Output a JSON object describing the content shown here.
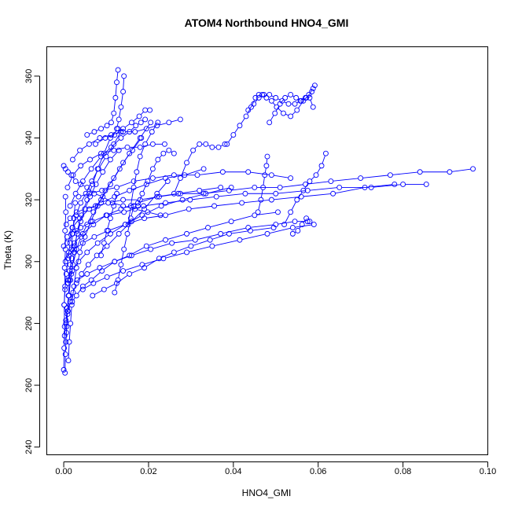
{
  "chart_data": {
    "type": "scatter",
    "title": "ATOM4 Northbound HNO4_GMI",
    "xlabel": "HNO4_GMI",
    "ylabel": "Theta (K)",
    "xlim": [
      -0.004,
      0.1
    ],
    "ylim": [
      237.5,
      369.5
    ],
    "xticks": [
      0.0,
      0.02,
      0.04,
      0.06,
      0.08,
      0.1
    ],
    "xtick_labels": [
      "0.00",
      "0.02",
      "0.04",
      "0.06",
      "0.08",
      "0.10"
    ],
    "yticks": [
      240,
      260,
      280,
      300,
      320,
      340,
      360
    ],
    "ytick_labels": [
      "240",
      "260",
      "280",
      "300",
      "320",
      "340",
      "360"
    ],
    "grid": false,
    "color": "#0000ff",
    "marker": "open-circle",
    "connected": true,
    "series": [
      {
        "x": [
          0.0003,
          0.0004,
          0.0006,
          0.0009,
          0.0012,
          0.0018,
          0.0025,
          0.0032,
          0.0042,
          0.0055,
          0.0068,
          0.008,
          0.0095,
          0.011,
          0.0128
        ],
        "y": [
          264,
          270,
          277,
          283,
          289,
          296,
          303,
          310,
          315,
          320,
          325,
          330,
          335,
          340,
          343
        ]
      },
      {
        "x": [
          0.0002,
          0.0005,
          0.0008,
          0.0012,
          0.0016,
          0.0022,
          0.003,
          0.0041,
          0.0055,
          0.007,
          0.0088,
          0.011,
          0.0132,
          0.0155,
          0.018,
          0.0205
        ],
        "y": [
          276,
          280,
          285,
          289,
          294,
          299,
          304,
          308,
          312,
          316,
          320,
          325,
          330,
          335,
          340,
          345
        ]
      },
      {
        "x": [
          0.0001,
          0.0003,
          0.0006,
          0.001,
          0.0015,
          0.0021,
          0.0029,
          0.004,
          0.0052,
          0.0066,
          0.0082,
          0.01,
          0.0118,
          0.0135
        ],
        "y": [
          286,
          291,
          296,
          301,
          306,
          311,
          315,
          319,
          322,
          326,
          330,
          334,
          338,
          342
        ]
      },
      {
        "x": [
          0.0005,
          0.001,
          0.0015,
          0.0022,
          0.003,
          0.0042,
          0.0058,
          0.0078,
          0.0102,
          0.013,
          0.016,
          0.019,
          0.022,
          0.0245
        ],
        "y": [
          281,
          284,
          287,
          290,
          293,
          296,
          299,
          302,
          305,
          309,
          313,
          317,
          322,
          326
        ]
      },
      {
        "x": [
          0.0011,
          0.0013,
          0.0016,
          0.0019,
          0.0024,
          0.003,
          0.0038,
          0.005,
          0.0064,
          0.008,
          0.0098,
          0.0118,
          0.014,
          0.0162,
          0.0183
        ],
        "y": [
          268,
          274,
          280,
          286,
          292,
          298,
          303,
          308,
          313,
          318,
          323,
          327,
          332,
          336,
          340
        ]
      },
      {
        "x": [
          0.002,
          0.003,
          0.0045,
          0.0065,
          0.009,
          0.012,
          0.0155,
          0.0195,
          0.024,
          0.029,
          0.034,
          0.0395,
          0.045,
          0.0505
        ],
        "y": [
          287,
          289,
          292,
          294,
          297,
          300,
          302,
          305,
          307,
          309,
          311,
          313,
          315,
          316
        ]
      },
      {
        "x": [
          0.001,
          0.002,
          0.0035,
          0.0055,
          0.008,
          0.011,
          0.0145,
          0.0185,
          0.023,
          0.028,
          0.0335,
          0.0395
        ],
        "y": [
          294,
          297,
          300,
          303,
          306,
          309,
          312,
          315,
          318,
          320,
          322,
          324
        ]
      },
      {
        "x": [
          0.0004,
          0.0012,
          0.0025,
          0.0045,
          0.007,
          0.01,
          0.0135,
          0.0175,
          0.022,
          0.027,
          0.032,
          0.037
        ],
        "y": [
          300,
          303,
          306,
          309,
          312,
          315,
          317,
          319,
          321,
          322,
          323,
          324
        ]
      },
      {
        "x": [
          0.0,
          0.0008,
          0.002,
          0.0038,
          0.006,
          0.0088,
          0.012,
          0.0155,
          0.0195,
          0.024,
          0.0285,
          0.033
        ],
        "y": [
          305,
          308,
          311,
          314,
          317,
          319,
          321,
          323,
          325,
          327,
          328,
          330
        ]
      },
      {
        "x": [
          0.0006,
          0.0015,
          0.003,
          0.005,
          0.0075,
          0.0105,
          0.014,
          0.018,
          0.0225,
          0.0275,
          0.033,
          0.039,
          0.045,
          0.051,
          0.057,
          0.063,
          0.07,
          0.077,
          0.084,
          0.091,
          0.0965
        ],
        "y": [
          312,
          314,
          316,
          317,
          318,
          319,
          320,
          320,
          321,
          322,
          322,
          323,
          324,
          324,
          325,
          326,
          327,
          328,
          329,
          329,
          330
        ]
      },
      {
        "x": [
          0.0008,
          0.002,
          0.004,
          0.0068,
          0.0102,
          0.0142,
          0.0188,
          0.024,
          0.0298,
          0.036,
          0.0428,
          0.05,
          0.0575,
          0.065,
          0.0725,
          0.08,
          0.0855
        ],
        "y": [
          306,
          309,
          311,
          313,
          315,
          316,
          318,
          319,
          320,
          321,
          322,
          322,
          323,
          324,
          324,
          325,
          325
        ]
      },
      {
        "x": [
          0.0012,
          0.0025,
          0.0045,
          0.0072,
          0.0105,
          0.0145,
          0.019,
          0.024,
          0.0295,
          0.0355,
          0.042,
          0.049,
          0.056,
          0.0635,
          0.071,
          0.078
        ],
        "y": [
          302,
          304,
          306,
          308,
          310,
          312,
          314,
          315,
          317,
          318,
          319,
          320,
          321,
          322,
          324,
          325
        ]
      },
      {
        "x": [
          0.0032,
          0.0055,
          0.0085,
          0.012,
          0.016,
          0.0205,
          0.0255,
          0.031,
          0.037,
          0.0435,
          0.05,
          0.0545,
          0.0575
        ],
        "y": [
          294,
          296,
          298,
          300,
          302,
          304,
          306,
          307,
          309,
          311,
          312,
          313,
          313
        ]
      },
      {
        "x": [
          0.0045,
          0.007,
          0.0102,
          0.014,
          0.0185,
          0.0235,
          0.029,
          0.035,
          0.0415,
          0.048,
          0.054,
          0.059
        ],
        "y": [
          291,
          293,
          295,
          297,
          299,
          301,
          303,
          305,
          307,
          309,
          311,
          312
        ]
      },
      {
        "x": [
          0.0068,
          0.0095,
          0.0125,
          0.0155,
          0.019,
          0.0225,
          0.026,
          0.03,
          0.0345,
          0.039,
          0.044,
          0.0495
        ],
        "y": [
          289,
          291,
          293,
          296,
          298,
          301,
          303,
          305,
          307,
          309,
          310,
          311
        ]
      },
      {
        "x": [
          0.0015,
          0.0028,
          0.0045,
          0.0065,
          0.0088,
          0.0112,
          0.0135,
          0.0155,
          0.017,
          0.0182,
          0.0192
        ],
        "y": [
          318,
          322,
          326,
          330,
          334,
          337,
          340,
          342,
          344,
          345,
          346
        ]
      },
      {
        "x": [
          0.0009,
          0.0022,
          0.004,
          0.0062,
          0.0088,
          0.0118,
          0.015,
          0.018,
          0.021,
          0.0238
        ],
        "y": [
          324,
          328,
          331,
          333,
          335,
          336,
          337,
          337,
          338,
          338
        ]
      },
      {
        "x": [
          0.0021,
          0.0038,
          0.006,
          0.0085,
          0.0112,
          0.014,
          0.0168,
          0.0195,
          0.022,
          0.0248,
          0.0275
        ],
        "y": [
          333,
          336,
          338,
          340,
          341,
          342,
          342,
          343,
          344,
          345,
          346
        ]
      },
      {
        "x": [
          0.0055,
          0.0072,
          0.0088,
          0.0102,
          0.0112,
          0.0118,
          0.0122,
          0.0125,
          0.0128
        ],
        "y": [
          341,
          342,
          343,
          344,
          345,
          348,
          353,
          358,
          362
        ]
      },
      {
        "x": [
          0.0125,
          0.013,
          0.0135,
          0.014,
          0.0142
        ],
        "y": [
          343,
          346,
          350,
          355,
          360
        ]
      },
      {
        "x": [
          0.0075,
          0.0098,
          0.012,
          0.014,
          0.016,
          0.0178,
          0.0192,
          0.0203
        ],
        "y": [
          338,
          340,
          341,
          343,
          345,
          347,
          349,
          349
        ]
      },
      {
        "x": [
          0.0152,
          0.0158,
          0.0165,
          0.0172,
          0.018,
          0.0192,
          0.0208,
          0.0222
        ],
        "y": [
          312,
          318,
          324,
          329,
          334,
          338,
          342,
          345
        ]
      },
      {
        "x": [
          0.0175,
          0.0185,
          0.0198,
          0.021,
          0.0222,
          0.0235,
          0.0248,
          0.026
        ],
        "y": [
          318,
          322,
          326,
          330,
          333,
          335,
          336,
          335
        ]
      },
      {
        "x": [
          0.026,
          0.0275,
          0.029,
          0.0305,
          0.032,
          0.0335,
          0.035,
          0.0365,
          0.038
        ],
        "y": [
          322,
          327,
          332,
          336,
          338,
          338,
          337,
          337,
          338
        ]
      },
      {
        "x": [
          0.0035,
          0.006,
          0.009,
          0.0125,
          0.0165,
          0.021,
          0.026,
          0.0315,
          0.0375,
          0.0435,
          0.049,
          0.0535
        ],
        "y": [
          321,
          322,
          323,
          324,
          326,
          327,
          328,
          328,
          329,
          329,
          328,
          327
        ]
      },
      {
        "x": [
          0.0385,
          0.04,
          0.0415,
          0.043,
          0.0442,
          0.0452,
          0.046,
          0.0468,
          0.0478,
          0.049,
          0.0502,
          0.0518,
          0.0535,
          0.055,
          0.0565,
          0.0578,
          0.0588,
          0.0592
        ],
        "y": [
          338,
          341,
          344,
          347,
          350,
          353,
          354,
          354,
          353,
          352,
          350,
          348,
          347,
          349,
          352,
          354,
          356,
          357
        ]
      },
      {
        "x": [
          0.0435,
          0.0448,
          0.046,
          0.0472,
          0.0485,
          0.05,
          0.0515,
          0.053,
          0.0545,
          0.0558,
          0.057,
          0.058,
          0.0588
        ],
        "y": [
          349,
          351,
          353,
          354,
          354,
          353,
          352,
          351,
          351,
          352,
          353,
          353,
          350
        ]
      },
      {
        "x": [
          0.0485,
          0.0498,
          0.051,
          0.0522,
          0.0535,
          0.0548,
          0.056,
          0.0572,
          0.0585
        ],
        "y": [
          345,
          348,
          351,
          353,
          354,
          353,
          352,
          353,
          355
        ]
      },
      {
        "x": [
          0.0458,
          0.0465,
          0.047,
          0.0474,
          0.0478,
          0.048
        ],
        "y": [
          316,
          320,
          324,
          328,
          331,
          334
        ]
      },
      {
        "x": [
          0.052,
          0.0535,
          0.055,
          0.0565,
          0.058,
          0.0595,
          0.0608,
          0.0618
        ],
        "y": [
          312,
          316,
          320,
          323,
          326,
          328,
          331,
          335
        ]
      },
      {
        "x": [
          0.054,
          0.0552,
          0.0562,
          0.0572,
          0.058
        ],
        "y": [
          309,
          310,
          312,
          314,
          313
        ]
      },
      {
        "x": [
          0.0,
          0.0001,
          0.0002,
          0.0001,
          0.0003,
          0.0002,
          0.0004,
          0.0003,
          0.0005,
          0.0004
        ],
        "y": [
          265,
          272,
          279,
          286,
          292,
          298,
          304,
          310,
          316,
          321
        ]
      },
      {
        "x": [
          0.0005,
          0.0007,
          0.0009,
          0.0011,
          0.0013,
          0.0015,
          0.0018,
          0.0021,
          0.0024,
          0.0027
        ],
        "y": [
          274,
          279,
          284,
          289,
          294,
          299,
          304,
          309,
          314,
          319
        ]
      },
      {
        "x": [
          0.001,
          0.0014,
          0.0019,
          0.0025,
          0.0032,
          0.004,
          0.005,
          0.0062,
          0.0076,
          0.0092,
          0.011,
          0.013
        ],
        "y": [
          293,
          297,
          301,
          305,
          309,
          313,
          317,
          321,
          325,
          329,
          333,
          336
        ]
      },
      {
        "x": [
          0.0,
          0.0004,
          0.001,
          0.0018,
          0.0028,
          0.004,
          0.0055,
          0.0072,
          0.0092,
          0.0115,
          0.014,
          0.0168,
          0.0198,
          0.0228
        ],
        "y": [
          331,
          330,
          329,
          328,
          326,
          325,
          324,
          322,
          321,
          319,
          318,
          317,
          316,
          315
        ]
      },
      {
        "x": [
          0.012,
          0.0128,
          0.0135,
          0.0142,
          0.015,
          0.0158,
          0.0165
        ],
        "y": [
          290,
          294,
          299,
          304,
          309,
          314,
          318
        ]
      },
      {
        "x": [
          0.0088,
          0.0095,
          0.0102,
          0.011,
          0.0118,
          0.0125
        ],
        "y": [
          302,
          306,
          310,
          314,
          318,
          322
        ]
      }
    ]
  }
}
